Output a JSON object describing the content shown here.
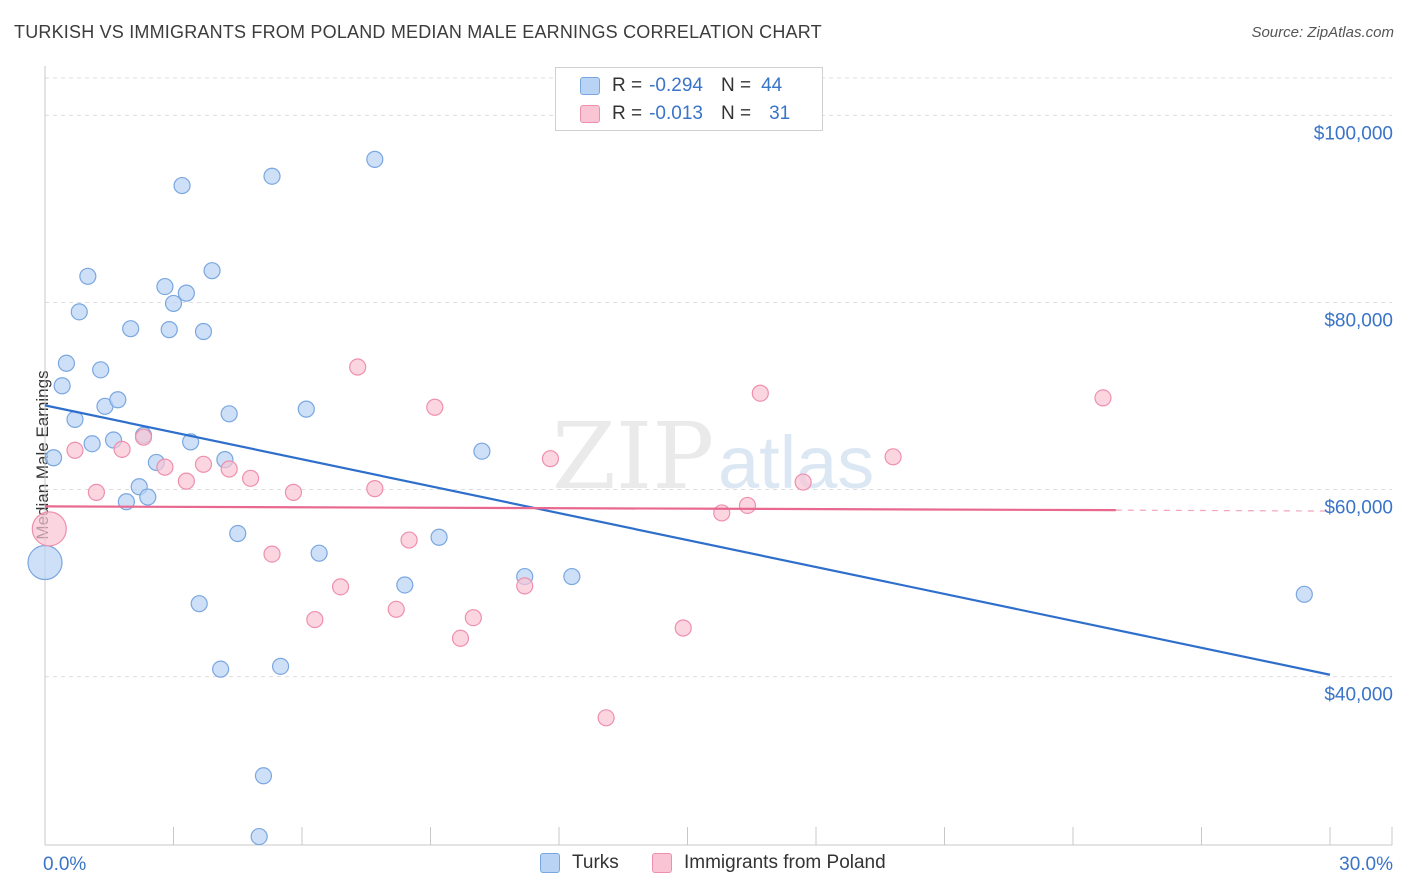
{
  "header": {
    "title": "TURKISH VS IMMIGRANTS FROM POLAND MEDIAN MALE EARNINGS CORRELATION CHART",
    "source": "Source: ZipAtlas.com"
  },
  "legend": {
    "r_label": "R =",
    "n_label": "N =",
    "rows": [
      {
        "r": "-0.294",
        "n": "44"
      },
      {
        "r": "-0.013",
        "n": "31"
      }
    ]
  },
  "watermark": {
    "zip": "ZIP",
    "atlas": "atlas"
  },
  "colors": {
    "turks_fill": "#b8d3f4",
    "turks_stroke": "#7aa7e0",
    "turks_line": "#2f6fcc",
    "poland_fill": "#f9c4d4",
    "poland_stroke": "#ef8fae",
    "poland_line": "#e8688f",
    "axis_text": "#3a74c8",
    "grid": "#dddddd"
  },
  "chart_data": {
    "type": "scatter",
    "title": "TURKISH VS IMMIGRANTS FROM POLAND MEDIAN MALE EARNINGS CORRELATION CHART",
    "xlabel": "",
    "ylabel": "Median Male Earnings",
    "xlim": [
      0,
      30
    ],
    "ylim": [
      22000,
      104000
    ],
    "x_tick_labels": [
      "0.0%",
      "30.0%"
    ],
    "y_ticks": [
      40000,
      60000,
      80000,
      100000
    ],
    "y_tick_labels": [
      "$40,000",
      "$60,000",
      "$80,000",
      "$100,000"
    ],
    "series": [
      {
        "name": "Turks",
        "r": -0.294,
        "n": 44,
        "trend": {
          "x": [
            0,
            30
          ],
          "y": [
            69000,
            40200
          ]
        },
        "points": [
          {
            "x": 0.0,
            "y": 52200,
            "big": true
          },
          {
            "x": 0.2,
            "y": 63400
          },
          {
            "x": 0.4,
            "y": 71100
          },
          {
            "x": 0.5,
            "y": 73500
          },
          {
            "x": 0.7,
            "y": 67500
          },
          {
            "x": 0.8,
            "y": 79000
          },
          {
            "x": 1.0,
            "y": 82800
          },
          {
            "x": 1.1,
            "y": 64900
          },
          {
            "x": 1.3,
            "y": 72800
          },
          {
            "x": 1.4,
            "y": 68900
          },
          {
            "x": 1.6,
            "y": 65300
          },
          {
            "x": 1.7,
            "y": 69600
          },
          {
            "x": 1.9,
            "y": 58700
          },
          {
            "x": 2.0,
            "y": 77200
          },
          {
            "x": 2.2,
            "y": 60300
          },
          {
            "x": 2.3,
            "y": 65800
          },
          {
            "x": 2.4,
            "y": 59200
          },
          {
            "x": 2.6,
            "y": 62900
          },
          {
            "x": 2.8,
            "y": 81700
          },
          {
            "x": 2.9,
            "y": 77100
          },
          {
            "x": 3.0,
            "y": 79900
          },
          {
            "x": 3.2,
            "y": 92500
          },
          {
            "x": 3.3,
            "y": 81000
          },
          {
            "x": 3.4,
            "y": 65100
          },
          {
            "x": 3.6,
            "y": 47800
          },
          {
            "x": 3.7,
            "y": 76900
          },
          {
            "x": 3.9,
            "y": 83400
          },
          {
            "x": 4.1,
            "y": 40800
          },
          {
            "x": 4.2,
            "y": 63200
          },
          {
            "x": 4.3,
            "y": 68100
          },
          {
            "x": 4.5,
            "y": 55300
          },
          {
            "x": 5.1,
            "y": 29400
          },
          {
            "x": 5.0,
            "y": 22900
          },
          {
            "x": 5.3,
            "y": 93500
          },
          {
            "x": 5.5,
            "y": 41100
          },
          {
            "x": 6.1,
            "y": 68600
          },
          {
            "x": 6.4,
            "y": 53200
          },
          {
            "x": 7.7,
            "y": 95300
          },
          {
            "x": 8.4,
            "y": 49800
          },
          {
            "x": 9.2,
            "y": 54900
          },
          {
            "x": 10.2,
            "y": 64100
          },
          {
            "x": 11.2,
            "y": 50700
          },
          {
            "x": 12.3,
            "y": 50700
          },
          {
            "x": 29.4,
            "y": 48800
          }
        ]
      },
      {
        "name": "Immigrants from Poland",
        "r": -0.013,
        "n": 31,
        "trend": {
          "x": [
            0,
            25.0
          ],
          "y": [
            58200,
            57800
          ]
        },
        "trend_dashed": {
          "x": [
            25.0,
            30
          ],
          "y": [
            57800,
            57700
          ]
        },
        "points": [
          {
            "x": 0.1,
            "y": 55800,
            "big": true
          },
          {
            "x": 0.7,
            "y": 64200
          },
          {
            "x": 1.2,
            "y": 59700
          },
          {
            "x": 1.8,
            "y": 64300
          },
          {
            "x": 2.3,
            "y": 65600
          },
          {
            "x": 2.8,
            "y": 62400
          },
          {
            "x": 3.3,
            "y": 60900
          },
          {
            "x": 3.7,
            "y": 62700
          },
          {
            "x": 4.3,
            "y": 62200
          },
          {
            "x": 4.8,
            "y": 61200
          },
          {
            "x": 5.3,
            "y": 53100
          },
          {
            "x": 5.8,
            "y": 59700
          },
          {
            "x": 6.3,
            "y": 46100
          },
          {
            "x": 6.9,
            "y": 49600
          },
          {
            "x": 7.3,
            "y": 73100
          },
          {
            "x": 7.7,
            "y": 60100
          },
          {
            "x": 8.2,
            "y": 47200
          },
          {
            "x": 8.5,
            "y": 54600
          },
          {
            "x": 9.1,
            "y": 68800
          },
          {
            "x": 9.7,
            "y": 44100
          },
          {
            "x": 10.0,
            "y": 46300
          },
          {
            "x": 11.2,
            "y": 49700
          },
          {
            "x": 11.8,
            "y": 63300
          },
          {
            "x": 13.1,
            "y": 35600
          },
          {
            "x": 14.9,
            "y": 45200
          },
          {
            "x": 15.8,
            "y": 57500
          },
          {
            "x": 16.4,
            "y": 58300
          },
          {
            "x": 16.7,
            "y": 70300
          },
          {
            "x": 17.7,
            "y": 60800
          },
          {
            "x": 19.8,
            "y": 63500
          },
          {
            "x": 24.7,
            "y": 69800
          }
        ]
      }
    ]
  }
}
